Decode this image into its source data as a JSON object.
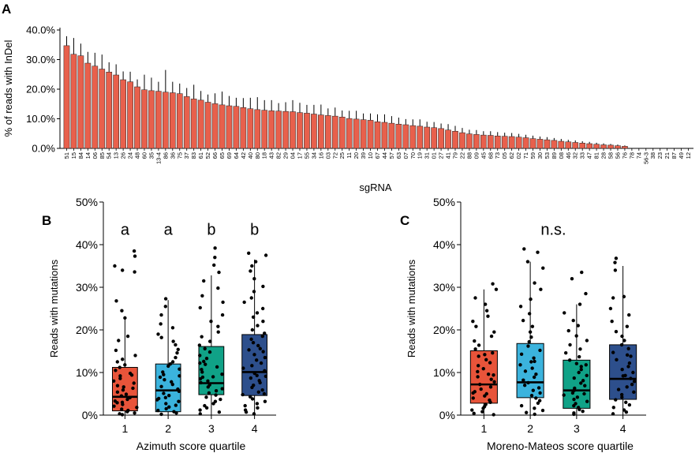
{
  "colors": {
    "bar": "#e8604c",
    "q1": "#e8543a",
    "q2": "#3bb3dd",
    "q3": "#10a287",
    "q4": "#2d4f8c"
  },
  "chart_data": [
    {
      "panel": "A",
      "type": "bar",
      "xlabel": "sgRNA",
      "ylabel": "% of reads with InDel",
      "ylim": [
        0,
        40
      ],
      "yticks": [
        "0.0%",
        "10.0%",
        "20.0%",
        "30.0%",
        "40.0%"
      ],
      "categories": [
        "51",
        "15",
        "84",
        "14",
        "06",
        "85",
        "54",
        "13",
        "26",
        "24",
        "48",
        "60",
        "35",
        "13-4",
        "86",
        "36",
        "75",
        "37",
        "83",
        "61",
        "52",
        "66",
        "65",
        "69",
        "64",
        "42",
        "40",
        "80",
        "18",
        "43",
        "82",
        "29",
        "04",
        "17",
        "55",
        "34",
        "16",
        "03",
        "72",
        "25",
        "11",
        "20",
        "39",
        "10",
        "67",
        "44",
        "57",
        "63",
        "07",
        "70",
        "19",
        "31",
        "01",
        "27",
        "41",
        "79",
        "22",
        "88",
        "09",
        "45",
        "68",
        "73",
        "05",
        "62",
        "02",
        "71",
        "59",
        "30",
        "53",
        "89",
        "08",
        "46",
        "32",
        "33",
        "47",
        "81",
        "28",
        "58",
        "56",
        "76",
        "78",
        "74",
        "56-3",
        "38",
        "23",
        "21",
        "87",
        "49",
        "12"
      ],
      "values": [
        34.7,
        31.8,
        31.3,
        28.8,
        27.8,
        26.8,
        25.8,
        24.8,
        23.2,
        22.5,
        20.8,
        19.8,
        19.5,
        19.3,
        19,
        18.8,
        18.5,
        17.5,
        16.7,
        16.3,
        15.6,
        15.1,
        14.7,
        14.4,
        14.2,
        13.8,
        13.4,
        13.1,
        12.9,
        12.7,
        12.6,
        12.5,
        12.4,
        12.1,
        11.9,
        11.6,
        11.3,
        11.1,
        10.9,
        10.6,
        10.1,
        9.9,
        9.7,
        9.5,
        9,
        8.8,
        8.5,
        8.2,
        8,
        7.7,
        7.5,
        7.2,
        7,
        6.7,
        6.2,
        5.8,
        5.3,
        4.9,
        4.7,
        4.5,
        4.4,
        4.2,
        4.1,
        4,
        3.8,
        3.6,
        3.3,
        3.1,
        2.9,
        2.7,
        2.4,
        2.2,
        2,
        1.8,
        1.6,
        1.4,
        1.2,
        1.1,
        0.9,
        0.7,
        0,
        0,
        0,
        0,
        0,
        0,
        0,
        0,
        0
      ],
      "errors": [
        3.2,
        5.5,
        4.1,
        3.8,
        4.5,
        4.9,
        3.3,
        3.6,
        2.8,
        3.4,
        2.5,
        5.1,
        4.4,
        3.2,
        7.5,
        3.7,
        3.4,
        2.9,
        4.8,
        3.1,
        2.6,
        3.5,
        4.5,
        3.3,
        2.9,
        3.2,
        3.7,
        4.2,
        3.4,
        3.6,
        2.7,
        3.1,
        3.9,
        3.3,
        2.8,
        3.1,
        3.5,
        2.4,
        2.9,
        2.2,
        2.6,
        2.8,
        2.1,
        2.3,
        2.5,
        2.7,
        2.4,
        2.2,
        1.9,
        2.1,
        2.3,
        1.8,
        1.9,
        1.7,
        2,
        1.8,
        1.6,
        1.4,
        1.5,
        1.3,
        1.4,
        1.3,
        1.2,
        1.2,
        1.1,
        1,
        1,
        0.9,
        0.9,
        0.8,
        0.8,
        0.7,
        0.7,
        0.6,
        0.6,
        0.5,
        0.5,
        0.4,
        0.4,
        0.3,
        0,
        0,
        0,
        0,
        0,
        0,
        0,
        0,
        0
      ]
    },
    {
      "panel": "B",
      "type": "box",
      "xlabel": "Azimuth score quartile",
      "ylabel": "Reads with mutations",
      "ylim": [
        0,
        50
      ],
      "yticks": [
        "0%",
        "10%",
        "20%",
        "30%",
        "40%",
        "50%"
      ],
      "categories": [
        "1",
        "2",
        "3",
        "4"
      ],
      "annotations": [
        "a",
        "a",
        "b",
        "b"
      ],
      "boxes": [
        {
          "q1": 1.0,
          "median": 4.3,
          "q3": 11.2,
          "whisker_low": 0,
          "whisker_high": 22.8
        },
        {
          "q1": 0.8,
          "median": 5.8,
          "q3": 12.0,
          "whisker_low": 0,
          "whisker_high": 27.0
        },
        {
          "q1": 4.8,
          "median": 7.5,
          "q3": 16.1,
          "whisker_low": 0,
          "whisker_high": 32.8
        },
        {
          "q1": 4.6,
          "median": 10.1,
          "q3": 18.9,
          "whisker_low": 0,
          "whisker_high": 36.5
        }
      ],
      "points": [
        [
          38.5,
          37.3,
          35.0,
          34.0,
          33.6,
          26.8,
          24.5,
          22.8,
          18.5,
          17.5,
          15.2,
          14.0,
          13.1,
          12.5,
          11.8,
          11.2,
          10.5,
          9.8,
          9.2,
          8.6,
          8.0,
          7.5,
          6.9,
          6.3,
          5.9,
          5.4,
          4.9,
          4.5,
          4.1,
          3.7,
          3.3,
          2.9,
          2.5,
          2.1,
          1.8,
          1.4,
          1.1,
          0.8,
          0.5,
          0.3,
          0.1,
          6.6,
          3.0,
          9.4
        ],
        [
          27.3,
          25.5,
          23.5,
          21.4,
          20.5,
          19.0,
          18.2,
          17.3,
          16.5,
          15.4,
          14.6,
          13.5,
          12.5,
          12.0,
          11.5,
          10.8,
          10.1,
          9.5,
          8.9,
          8.3,
          7.8,
          7.2,
          6.7,
          6.1,
          5.6,
          5.1,
          4.6,
          4.1,
          3.6,
          3.2,
          2.7,
          2.3,
          1.9,
          1.5,
          1.1,
          0.8,
          0.5,
          0.2,
          9.2,
          3.9
        ],
        [
          39.2,
          37.0,
          35.2,
          33.5,
          31.5,
          29.8,
          28.0,
          26.5,
          25.2,
          23.5,
          22.0,
          20.8,
          19.5,
          18.4,
          17.3,
          16.4,
          15.6,
          14.8,
          14.0,
          13.3,
          12.6,
          11.9,
          11.3,
          10.7,
          10.1,
          9.6,
          9.0,
          8.5,
          8.0,
          7.6,
          7.1,
          6.6,
          6.2,
          5.7,
          5.2,
          4.7,
          4.2,
          3.7,
          3.2,
          2.7,
          2.2,
          1.7,
          1.2,
          0.7,
          0.3,
          12.2,
          8.9
        ],
        [
          38.0,
          37.5,
          36.0,
          35.0,
          33.8,
          32.0,
          30.2,
          29.0,
          27.5,
          26.5,
          25.0,
          24.0,
          23.0,
          22.0,
          21.0,
          20.0,
          19.2,
          18.5,
          17.8,
          17.0,
          16.3,
          15.6,
          14.9,
          14.2,
          13.5,
          12.9,
          12.2,
          11.6,
          11.0,
          10.4,
          9.8,
          9.3,
          8.7,
          8.1,
          7.6,
          7.0,
          6.5,
          5.9,
          5.4,
          4.8,
          4.3,
          3.8,
          3.2,
          2.7,
          2.2,
          1.7,
          1.2,
          0.7,
          0.3,
          15.3,
          9.1,
          5.0
        ]
      ]
    },
    {
      "panel": "C",
      "type": "box",
      "xlabel": "Moreno-Mateos score quartile",
      "ylabel": "Reads with mutations",
      "ylim": [
        0,
        50
      ],
      "yticks": [
        "0%",
        "10%",
        "20%",
        "30%",
        "40%",
        "50%"
      ],
      "categories": [
        "1",
        "2",
        "3",
        "4"
      ],
      "annotations": [
        "n.s."
      ],
      "boxes": [
        {
          "q1": 2.8,
          "median": 7.2,
          "q3": 15.1,
          "whisker_low": 0,
          "whisker_high": 29.5
        },
        {
          "q1": 4.1,
          "median": 7.7,
          "q3": 16.8,
          "whisker_low": 0,
          "whisker_high": 36.0
        },
        {
          "q1": 1.6,
          "median": 5.8,
          "q3": 12.9,
          "whisker_low": 0,
          "whisker_high": 26.0
        },
        {
          "q1": 3.7,
          "median": 8.5,
          "q3": 16.5,
          "whisker_low": 0,
          "whisker_high": 35.0
        }
      ],
      "points": [
        [
          30.8,
          29.5,
          27.5,
          26.0,
          24.5,
          23.2,
          22.0,
          20.8,
          19.5,
          18.5,
          17.4,
          16.4,
          15.5,
          14.6,
          13.8,
          13.0,
          12.3,
          11.6,
          10.9,
          10.2,
          9.6,
          9.0,
          8.4,
          7.8,
          7.2,
          6.6,
          6.1,
          5.5,
          5.0,
          4.5,
          4.0,
          3.5,
          3.0,
          2.5,
          2.0,
          1.6,
          1.2,
          0.8,
          0.4,
          0.1,
          9.4,
          5.2,
          14.2
        ],
        [
          39.0,
          38.2,
          36.0,
          34.5,
          31.0,
          29.5,
          27.2,
          25.5,
          23.8,
          22.2,
          20.8,
          19.5,
          18.3,
          17.2,
          16.2,
          15.2,
          14.3,
          13.4,
          12.6,
          11.8,
          11.0,
          10.3,
          9.6,
          8.9,
          8.2,
          7.6,
          7.0,
          6.4,
          5.8,
          5.2,
          4.6,
          4.0,
          3.4,
          2.8,
          2.2,
          1.6,
          1.1,
          0.6,
          0.2,
          12.5
        ],
        [
          33.5,
          32.0,
          28.5,
          26.0,
          24.0,
          22.2,
          21.0,
          19.8,
          18.6,
          17.5,
          16.5,
          15.5,
          14.6,
          13.7,
          12.9,
          12.1,
          11.4,
          10.7,
          10.0,
          9.3,
          8.7,
          8.1,
          7.5,
          6.9,
          6.3,
          5.8,
          5.2,
          4.7,
          4.2,
          3.7,
          3.2,
          2.7,
          2.2,
          1.8,
          1.3,
          0.9,
          0.5,
          0.2,
          11.8,
          5.0
        ],
        [
          36.8,
          35.8,
          34.0,
          27.8,
          27.5,
          25.0,
          23.5,
          22.0,
          20.8,
          19.6,
          18.5,
          17.5,
          16.5,
          15.6,
          14.7,
          13.8,
          13.0,
          12.2,
          11.4,
          10.7,
          10.0,
          9.3,
          8.6,
          7.9,
          7.2,
          6.6,
          6.0,
          5.4,
          4.8,
          4.2,
          3.6,
          3.0,
          2.4,
          1.8,
          1.2,
          0.7,
          0.3,
          14.1,
          9.2
        ]
      ]
    }
  ],
  "panels": {
    "A": "A",
    "B": "B",
    "C": "C"
  }
}
